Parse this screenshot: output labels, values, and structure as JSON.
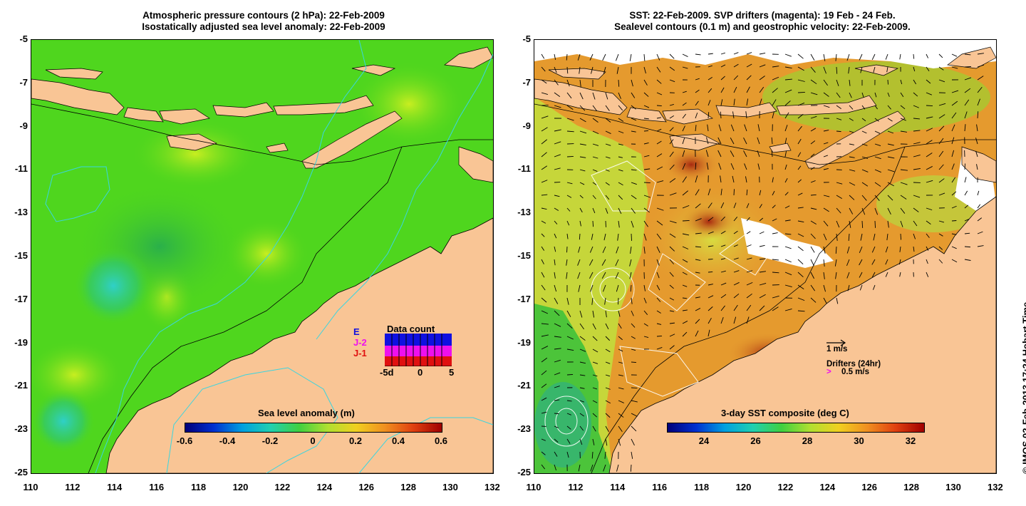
{
  "left_panel": {
    "title_line1": "Atmospheric pressure contours (2 hPa): 22-Feb-2009",
    "title_line2": "Isostatically adjusted sea level anomaly: 22-Feb-2009",
    "colorbar_label": "Sea level anomaly (m)",
    "colorbar_ticks": [
      "-0.6",
      "-0.4",
      "-0.2",
      "0",
      "0.2",
      "0.4",
      "0.6"
    ],
    "data_count": {
      "title": "Data count",
      "legend": [
        {
          "label": "E",
          "color": "#1010e0"
        },
        {
          "label": "J-2",
          "color": "#ee10ee"
        },
        {
          "label": "J-1",
          "color": "#e01010"
        }
      ],
      "axis_ticks": [
        "-5d",
        "0",
        "5"
      ]
    }
  },
  "right_panel": {
    "title_line1": "SST: 22-Feb-2009. SVP drifters (magenta): 19 Feb - 24 Feb.",
    "title_line2": "Sealevel contours (0.1 m) and geostrophic velocity: 22-Feb-2009.",
    "colorbar_label": "3-day SST composite (deg C)",
    "colorbar_ticks": [
      "24",
      "26",
      "28",
      "30",
      "32"
    ],
    "velocity_scale": "1 m/s",
    "drifters_label": "Drifters (24hr)",
    "drifters_scale": "0.5 m/s"
  },
  "axes": {
    "y_ticks": [
      "-5",
      "-7",
      "-9",
      "-11",
      "-13",
      "-15",
      "-17",
      "-19",
      "-21",
      "-23",
      "-25"
    ],
    "x_ticks": [
      "110",
      "112",
      "114",
      "116",
      "118",
      "120",
      "122",
      "124",
      "126",
      "128",
      "130",
      "132"
    ]
  },
  "credit": "© IMOS 02-Feb-2013 17:24 Hobart Time",
  "colors": {
    "land": "#f9c595",
    "sla_background": "#4fd61e",
    "sst_background": "#e59a2e",
    "contour_cyan": "#3ad5e0",
    "drifter_magenta": "#ee10ee"
  }
}
